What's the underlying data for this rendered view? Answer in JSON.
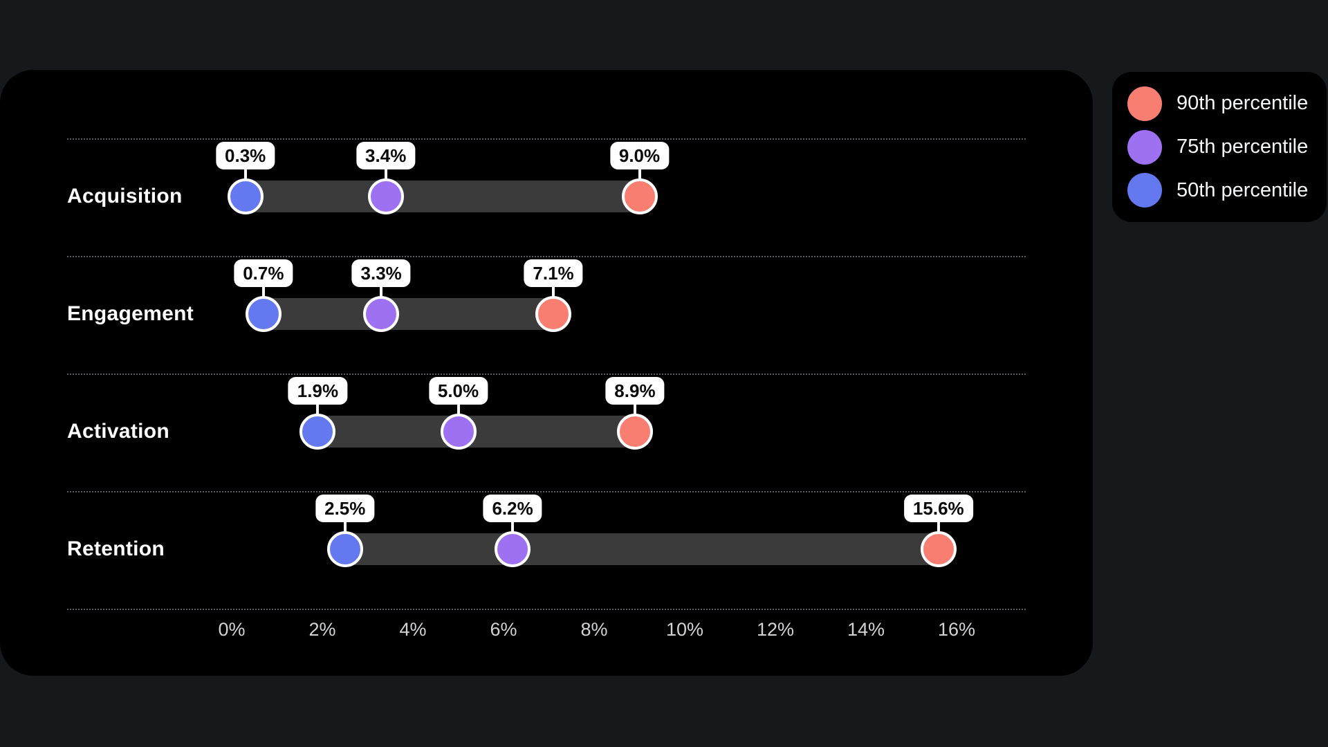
{
  "colors": {
    "page_background": "#16181c",
    "card_background": "#000000",
    "range_bar": "#3b3b3b",
    "grid_line": "#5d6065",
    "tick_text": "#d2d3d5",
    "row_label_text": "#ffffff",
    "value_label_bg": "#ffffff",
    "value_label_text": "#0b0b0b",
    "p90": "#f87e72",
    "p75": "#9e70f2",
    "p50": "#6479f0"
  },
  "legend": {
    "items": [
      {
        "label": "90th percentile",
        "color": "#f87e72"
      },
      {
        "label": "75th percentile",
        "color": "#9e70f2"
      },
      {
        "label": "50th percentile",
        "color": "#6479f0"
      }
    ]
  },
  "chart_data": {
    "type": "dumbbell",
    "title": "",
    "xlabel": "",
    "ylabel": "",
    "categories": [
      "Acquisition",
      "Engagement",
      "Activation",
      "Retention"
    ],
    "series": [
      {
        "name": "50th percentile",
        "color": "#6479f0",
        "values": [
          0.3,
          0.7,
          1.9,
          2.5
        ]
      },
      {
        "name": "75th percentile",
        "color": "#9e70f2",
        "values": [
          3.4,
          3.3,
          5.0,
          6.2
        ]
      },
      {
        "name": "90th percentile",
        "color": "#f87e72",
        "values": [
          9.0,
          7.1,
          8.9,
          15.6
        ]
      }
    ],
    "point_labels": [
      [
        "0.3%",
        "3.4%",
        "9.0%"
      ],
      [
        "0.7%",
        "3.3%",
        "7.1%"
      ],
      [
        "1.9%",
        "5.0%",
        "8.9%"
      ],
      [
        "2.5%",
        "6.2%",
        "15.6%"
      ]
    ],
    "x_ticks": [
      "0%",
      "2%",
      "4%",
      "6%",
      "8%",
      "10%",
      "12%",
      "14%",
      "16%"
    ],
    "xlim": [
      0,
      16
    ],
    "grid": "dotted-row-separators",
    "legend_position": "outside-top-right",
    "value_labels": "white pill above every marker, one decimal"
  }
}
